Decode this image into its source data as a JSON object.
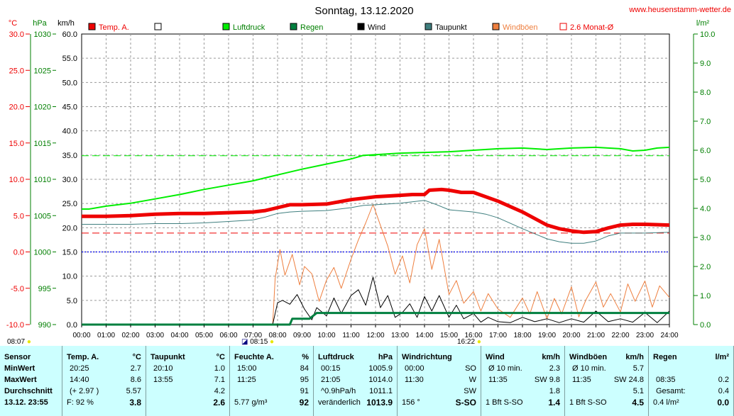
{
  "title": "Sonntag, 13.12.2020",
  "site": "www.heusenstamm-wetter.de",
  "colors": {
    "temp": "#ee0000",
    "pressure": "#00ee00",
    "rain": "#007f3f",
    "wind": "#000000",
    "dewpoint": "#3f7f7f",
    "gusts": "#ee7f3f",
    "avg": "#ee0000",
    "green_axis": "#007f00",
    "grid": "#9a9a9a",
    "zero_line": "#0000ee",
    "table_bg": "#ccffff"
  },
  "units": {
    "temp": "°C",
    "pressure": "hPa",
    "wind": "km/h",
    "rain": "l/m²"
  },
  "legend": [
    {
      "label": "Temp. A.",
      "color": "#ee0000",
      "filled": true
    },
    {
      "label": "",
      "color": "#000000",
      "filled": false
    },
    {
      "label": "Luftdruck",
      "color": "#00ee00",
      "filled": true
    },
    {
      "label": "Regen",
      "color": "#007f3f",
      "filled": true
    },
    {
      "label": "Wind",
      "color": "#000000",
      "filled": true
    },
    {
      "label": "Taupunkt",
      "color": "#3f7f7f",
      "filled": true
    },
    {
      "label": "Windböen",
      "color": "#ee7f3f",
      "filled": true
    },
    {
      "label": "2.6 Monat-Ø",
      "color": "#ee0000",
      "filled": false
    }
  ],
  "axes": {
    "temp_ticks": [
      "30.0",
      "25.0",
      "20.0",
      "15.0",
      "10.0",
      "5.0",
      "0.0",
      "-5.0",
      "-10.0"
    ],
    "pressure_ticks": [
      "1030",
      "1025",
      "1020",
      "1015",
      "1010",
      "1005",
      "1000",
      "995",
      "990"
    ],
    "wind_ticks": [
      "60.0",
      "55.0",
      "50.0",
      "45.0",
      "40.0",
      "35.0",
      "30.0",
      "25.0",
      "20.0",
      "15.0",
      "10.0",
      "5.0",
      "0.0"
    ],
    "rain_ticks": [
      "10.0",
      "9.0",
      "8.0",
      "7.0",
      "6.0",
      "5.0",
      "4.0",
      "3.0",
      "2.0",
      "1.0",
      "0.0"
    ],
    "x_ticks": [
      "00:00",
      "01:00",
      "02:00",
      "03:00",
      "04:00",
      "05:00",
      "06:00",
      "07:00",
      "08:00",
      "09:00",
      "10:00",
      "11:00",
      "12:00",
      "13:00",
      "14:00",
      "15:00",
      "16:00",
      "17:00",
      "18:00",
      "19:00",
      "20:00",
      "21:00",
      "22:00",
      "23:00",
      "24:00"
    ]
  },
  "time_marks": {
    "sunrise": "08:07",
    "sunset": "16:22",
    "mid": "08:15"
  },
  "chart_data": {
    "type": "line",
    "title": "Sonntag, 13.12.2020",
    "x_range": [
      "00:00",
      "24:00"
    ],
    "ylim_temp": [
      -10,
      30
    ],
    "ylim_pressure": [
      990,
      1030
    ],
    "ylim_wind": [
      0,
      60
    ],
    "ylim_rain": [
      0,
      10
    ],
    "grid": true,
    "temp_avg": 2.6,
    "pressure_ref": 1013.25,
    "series": [
      {
        "name": "Temp. A.",
        "axis": "temp",
        "t": [
          0,
          1,
          2,
          3,
          4,
          5,
          6,
          7,
          7.5,
          8,
          8.5,
          9,
          10,
          10.5,
          11,
          11.5,
          12,
          13,
          13.5,
          14,
          14.2,
          14.7,
          15,
          15.5,
          16,
          17,
          18,
          19,
          19.5,
          20,
          20.5,
          21,
          21.5,
          22,
          22.5,
          23,
          24
        ],
        "v": [
          4.9,
          4.9,
          5.0,
          5.2,
          5.3,
          5.3,
          5.4,
          5.5,
          5.7,
          6.1,
          6.5,
          6.5,
          6.6,
          6.9,
          7.2,
          7.4,
          7.6,
          7.8,
          7.9,
          7.9,
          8.5,
          8.6,
          8.5,
          8.2,
          8.2,
          7.0,
          5.5,
          3.7,
          3.2,
          2.9,
          2.7,
          2.8,
          3.3,
          3.7,
          3.8,
          3.8,
          3.7
        ]
      },
      {
        "name": "Taupunkt",
        "axis": "temp",
        "t": [
          0,
          1,
          2,
          3,
          4,
          5,
          6,
          7,
          7.5,
          8,
          8.5,
          9,
          10,
          11,
          11.5,
          12,
          13,
          13.5,
          14,
          14.5,
          15,
          16,
          16.5,
          17,
          18,
          19,
          19.5,
          20,
          20.5,
          21,
          21.5,
          22,
          23,
          24
        ],
        "v": [
          3.8,
          3.8,
          3.8,
          3.9,
          3.9,
          4.0,
          4.2,
          4.4,
          4.8,
          5.3,
          5.5,
          5.6,
          5.7,
          6.1,
          6.4,
          6.5,
          6.7,
          6.9,
          7.1,
          6.5,
          5.8,
          5.5,
          5.2,
          4.7,
          3.2,
          1.8,
          1.4,
          1.2,
          1.2,
          1.5,
          2.2,
          2.6,
          2.6,
          2.7
        ]
      },
      {
        "name": "Luftdruck",
        "axis": "pressure",
        "t": [
          0,
          0.3,
          1,
          2,
          3,
          4,
          5,
          6,
          7,
          8,
          9,
          10,
          11,
          11.5,
          12,
          13,
          14,
          15,
          16,
          17,
          18,
          19,
          20,
          21,
          22,
          22.5,
          23,
          23.5,
          24
        ],
        "v": [
          1005.9,
          1005.9,
          1006.3,
          1006.7,
          1007.3,
          1007.9,
          1008.6,
          1009.2,
          1009.8,
          1010.6,
          1011.4,
          1012.1,
          1012.8,
          1013.3,
          1013.4,
          1013.6,
          1013.7,
          1013.8,
          1014.0,
          1014.2,
          1014.3,
          1014.1,
          1014.3,
          1014.4,
          1014.2,
          1013.9,
          1014.0,
          1014.3,
          1014.4
        ]
      },
      {
        "name": "Regen",
        "axis": "rain",
        "t": [
          0,
          8.5,
          8.6,
          9.3,
          9.6,
          10.5,
          12,
          16,
          20,
          24
        ],
        "v": [
          0,
          0,
          0.2,
          0.2,
          0.4,
          0.4,
          0.4,
          0.4,
          0.4,
          0.4
        ]
      },
      {
        "name": "Wind",
        "axis": "wind",
        "t": [
          0,
          7.8,
          8.0,
          8.2,
          8.5,
          8.8,
          9.1,
          9.4,
          9.6,
          10,
          10.3,
          10.6,
          11,
          11.3,
          11.6,
          11.9,
          12.2,
          12.5,
          12.8,
          13.1,
          13.4,
          13.7,
          14,
          14.3,
          14.6,
          15,
          15.3,
          15.6,
          16,
          16.3,
          16.6,
          17,
          17.5,
          18,
          18.5,
          19,
          19.5,
          20,
          20.5,
          21,
          21.5,
          22,
          22.5,
          23,
          23.5,
          24
        ],
        "v": [
          0,
          0,
          4.5,
          5.0,
          4.2,
          6.2,
          3.2,
          1.0,
          3.5,
          1.8,
          5.5,
          2.3,
          6.0,
          7.2,
          4.0,
          9.8,
          3.5,
          6.0,
          1.5,
          2.5,
          4.3,
          1.5,
          5.8,
          2.8,
          6.0,
          1.5,
          4.0,
          1.2,
          2.3,
          0.5,
          1.5,
          0.6,
          0.4,
          1.5,
          0.6,
          1.2,
          0.4,
          1.2,
          0.5,
          2.8,
          0.6,
          1.2,
          0.5,
          2.5,
          0.4,
          2.8
        ]
      },
      {
        "name": "Windböen",
        "axis": "wind",
        "t": [
          0,
          7.8,
          7.9,
          8.1,
          8.3,
          8.6,
          8.9,
          9.1,
          9.4,
          9.7,
          10,
          10.3,
          10.6,
          11,
          11.3,
          11.6,
          11.9,
          12.2,
          12.5,
          12.8,
          13.1,
          13.4,
          13.7,
          14,
          14.3,
          14.6,
          15,
          15.3,
          15.6,
          16,
          16.3,
          16.6,
          17,
          17.5,
          18,
          18.3,
          18.6,
          19,
          19.3,
          19.6,
          20,
          20.3,
          20.6,
          21,
          21.3,
          21.6,
          22,
          22.3,
          22.6,
          23,
          23.3,
          23.6,
          24
        ],
        "v": [
          0,
          0,
          9.5,
          15.5,
          10.2,
          14.5,
          8.2,
          12.0,
          10.5,
          4.8,
          9.2,
          11.8,
          7.5,
          13.5,
          17.5,
          21.0,
          24.8,
          20.5,
          16.2,
          10.4,
          14.2,
          8.6,
          16.5,
          19.8,
          11.4,
          17.6,
          6.2,
          9.1,
          4.4,
          6.8,
          2.8,
          6.4,
          3.2,
          1.5,
          5.5,
          2.2,
          6.8,
          1.2,
          5.4,
          2.2,
          7.8,
          1.6,
          5.2,
          8.8,
          3.6,
          6.4,
          2.6,
          8.4,
          4.8,
          9.0,
          3.6,
          8.0,
          5.6
        ]
      }
    ]
  },
  "table": {
    "date": "13.12. 23:55",
    "col1": {
      "header": "Sensor",
      "rows": [
        "MinWert",
        "MaxWert",
        "Durchschnitt"
      ]
    },
    "col2": {
      "header": "Temp. A.",
      "unit": "°C",
      "rows": [
        [
          "20:25",
          "2.7"
        ],
        [
          "14:40",
          "8.6"
        ],
        [
          "(+ 2.97 )",
          "5.57"
        ]
      ],
      "foot_left": "F: 92 %",
      "foot_value": "3.8"
    },
    "col3": {
      "header": "Taupunkt",
      "unit": "°C",
      "rows": [
        [
          "20:10",
          "1.0"
        ],
        [
          "13:55",
          "7.1"
        ],
        [
          "",
          "4.2"
        ]
      ],
      "foot_left": "",
      "foot_value": "2.6"
    },
    "col4": {
      "header": "Feuchte A.",
      "unit": "%",
      "rows": [
        [
          "15:00",
          "84"
        ],
        [
          "11:25",
          "95"
        ],
        [
          "",
          "91"
        ]
      ],
      "foot_left": "5.77 g/m³",
      "foot_value": "92"
    },
    "col5": {
      "header": "Luftdruck",
      "unit": "hPa",
      "rows": [
        [
          "00:15",
          "1005.9"
        ],
        [
          "21:05",
          "1014.0"
        ],
        [
          "^0.9hPa/h",
          "1011.1"
        ]
      ],
      "foot_left": "veränderlich",
      "foot_value": "1013.9"
    },
    "col6": {
      "header": "Windrichtung",
      "unit": "",
      "rows": [
        [
          "00:00",
          "SO"
        ],
        [
          "11:30",
          "W"
        ],
        [
          "",
          "SW"
        ]
      ],
      "foot_left": "156 °",
      "foot_value": "S-SO"
    },
    "col7": {
      "header": "Wind",
      "unit": "km/h",
      "rows": [
        [
          "Ø 10 min.",
          "2.3"
        ],
        [
          "11:35",
          "SW 9.8"
        ],
        [
          "",
          "1.8"
        ]
      ],
      "foot_left": "1 Bft S-SO",
      "foot_value": "1.4"
    },
    "col8": {
      "header": "Windböen",
      "unit": "km/h",
      "rows": [
        [
          "Ø 10 min.",
          "5.7"
        ],
        [
          "11:35",
          "SW 24.8"
        ],
        [
          "",
          "5.1"
        ]
      ],
      "foot_left": "1 Bft S-SO",
      "foot_value": "4.5"
    },
    "col9": {
      "header": "Regen",
      "unit": "l/m²",
      "rows": [
        [
          "",
          ""
        ],
        [
          "08:35",
          "0.2"
        ],
        [
          "Gesamt:",
          "0.4"
        ]
      ],
      "foot_left": "0.4 l/m²",
      "foot_value": "0.0"
    }
  }
}
